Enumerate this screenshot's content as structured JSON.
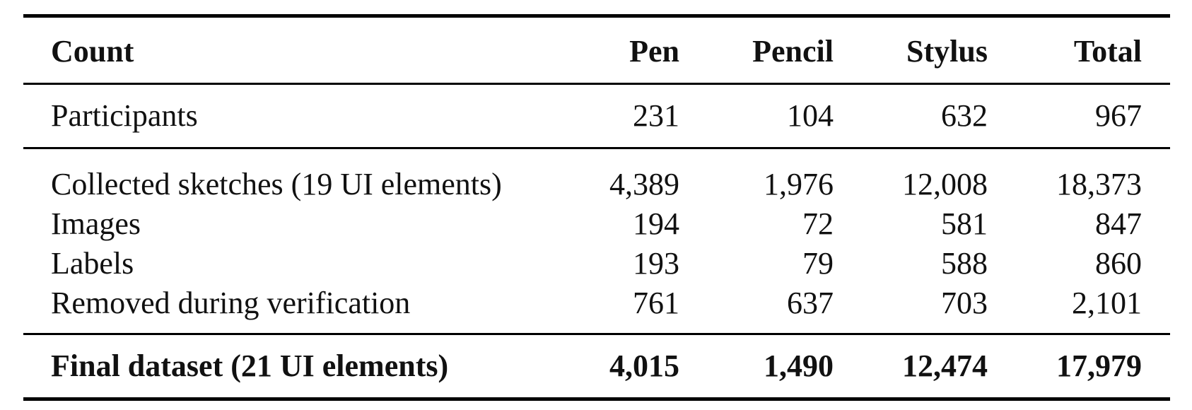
{
  "table": {
    "headers": [
      "Count",
      "Pen",
      "Pencil",
      "Stylus",
      "Total"
    ],
    "participants": {
      "label": "Participants",
      "values": [
        "231",
        "104",
        "632",
        "967"
      ]
    },
    "rows": [
      {
        "label": "Collected sketches (19 UI elements)",
        "values": [
          "4,389",
          "1,976",
          "12,008",
          "18,373"
        ]
      },
      {
        "label": "Images",
        "values": [
          "194",
          "72",
          "581",
          "847"
        ]
      },
      {
        "label": "Labels",
        "values": [
          "193",
          "79",
          "588",
          "860"
        ]
      },
      {
        "label": "Removed during verification",
        "values": [
          "761",
          "637",
          "703",
          "2,101"
        ]
      }
    ],
    "final": {
      "label": "Final dataset (21 UI elements)",
      "values": [
        "4,015",
        "1,490",
        "12,474",
        "17,979"
      ]
    }
  }
}
